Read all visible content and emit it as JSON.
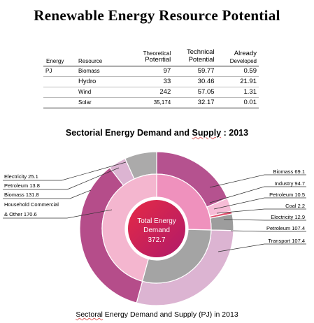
{
  "title": "Renewable Energy Resource Potential",
  "table": {
    "headers": {
      "energy": "Energy",
      "resource": "Resource",
      "theoretical": [
        "Theoretical",
        "Potential"
      ],
      "technical": [
        "Technical",
        "Potential"
      ],
      "developed": [
        "Already",
        "Developed"
      ]
    },
    "unit": "PJ",
    "rows": [
      {
        "resource": "Biomass",
        "theoretical": "97",
        "technical": "59.77",
        "developed": "0.59"
      },
      {
        "resource": "Hydro",
        "theoretical": "33",
        "technical": "30.46",
        "developed": "21.91"
      },
      {
        "resource": "Wind",
        "theoretical": "242",
        "technical": "57.05",
        "developed": "1.31"
      },
      {
        "resource": "Solar",
        "theoretical": "35,174",
        "technical": "32.17",
        "developed": "0.01"
      }
    ]
  },
  "subtitle": {
    "before": "Sectorial Energy Demand and ",
    "underlined": "Supply",
    "after": " : 2013"
  },
  "caption": {
    "underlined": "Sectoral",
    "rest": " Energy Demand and Supply (PJ)  in 2013"
  },
  "center": {
    "line1": "Total Energy",
    "line2": "Demand",
    "line3": "372.7"
  },
  "colors": {
    "biomass_supply": "#b5528f",
    "industry": "#ef91bd",
    "petroleum_supply": "#f6bcd6",
    "coal": "#e0506e",
    "electricity_supply": "#9d9d9d",
    "transport": "#a4a4a4",
    "household": "#f4b6cf",
    "electricity_demand": "#abaaaa",
    "petroleum_demand": "#dcb4d2",
    "biomass_demand": "#b54d8a",
    "center_start": "#e52a45",
    "center_end": "#b01a6a"
  },
  "chart_data": {
    "type": "pie",
    "title": "Sectorial Energy Demand and Supply : 2013",
    "total": 372.7,
    "inner_ring": [
      {
        "label": "Industry",
        "value": 94.7,
        "color": "#ef91bd"
      },
      {
        "label": "Transport",
        "value": 107.4,
        "color": "#a4a4a4"
      },
      {
        "label": "Household Commercial & Other",
        "value": 170.6,
        "color": "#f4b6cf"
      }
    ],
    "outer_ring": [
      {
        "label": "Biomass",
        "value": 69.1,
        "color": "#b5528f"
      },
      {
        "label": "Petroleum",
        "value": 10.5,
        "color": "#f6bcd6"
      },
      {
        "label": "Coal",
        "value": 2.2,
        "color": "#e0506e"
      },
      {
        "label": "Electricity",
        "value": 12.9,
        "color": "#9d9d9d"
      },
      {
        "label": "Petroleum",
        "value": 107.4,
        "color": "#dcb4d2"
      },
      {
        "label": "Biomass",
        "value": 131.8,
        "color": "#b54d8a"
      },
      {
        "label": "Petroleum",
        "value": 13.8,
        "color": "#dcb4d2"
      },
      {
        "label": "Electricity",
        "value": 25.1,
        "color": "#abaaaa"
      }
    ],
    "labels_right": [
      {
        "name": "Biomass",
        "value": "69.1"
      },
      {
        "name": "Industry",
        "value": "94.7"
      },
      {
        "name": "Petroleum",
        "value": "10.5"
      },
      {
        "name": "Coal",
        "value": "2.2"
      },
      {
        "name": "Electricity",
        "value": "12.9"
      },
      {
        "name": "Petroleum",
        "value": "107.4"
      },
      {
        "name": "Transport",
        "value": "107.4"
      }
    ],
    "labels_left": [
      {
        "name": "Electricity",
        "value": "25.1"
      },
      {
        "name": "Petroleum",
        "value": "13.8"
      },
      {
        "name": "Biomass",
        "value": "131.8"
      },
      {
        "name": "Household  Commercial",
        "value": ""
      },
      {
        "name": "& Other",
        "value": "170.6"
      }
    ]
  }
}
